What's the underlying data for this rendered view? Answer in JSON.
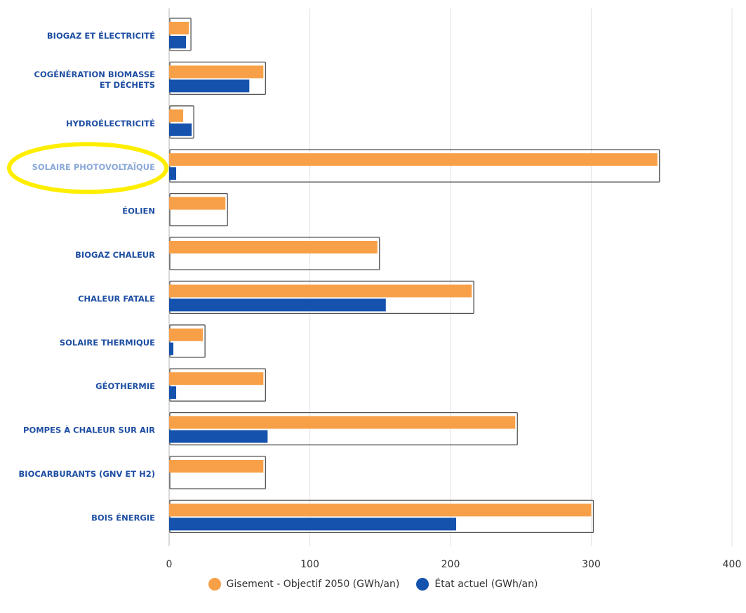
{
  "chart_data": {
    "type": "bar",
    "orientation": "horizontal",
    "categories": [
      [
        "BIOGAZ ET ÉLECTRICITÉ"
      ],
      [
        "COGÉNÉRATION BIOMASSE",
        "ET DÉCHETS"
      ],
      [
        "HYDROÉLECTRICITÉ"
      ],
      [
        "SOLAIRE PHOTOVOLTAÏQUE"
      ],
      [
        "ÉOLIEN"
      ],
      [
        "BIOGAZ CHALEUR"
      ],
      [
        "CHALEUR FATALE"
      ],
      [
        "SOLAIRE THERMIQUE"
      ],
      [
        "GÉOTHERMIE"
      ],
      [
        "POMPES À CHALEUR SUR AIR"
      ],
      [
        "BIOCARBURANTS (GNV ET H2)"
      ],
      [
        "BOIS ÉNERGIE"
      ]
    ],
    "series": [
      {
        "name": "Gisement - Objectif 2050 (GWh/an)",
        "color": "#f7a048",
        "values": [
          14,
          67,
          10,
          347,
          40,
          148,
          215,
          24,
          67,
          246,
          67,
          300
        ]
      },
      {
        "name": "État actuel (GWh/an)",
        "color": "#1452ad",
        "values": [
          12,
          57,
          16,
          5,
          0,
          0,
          154,
          3,
          5,
          70,
          0,
          204
        ]
      }
    ],
    "xticks": [
      "0",
      "100",
      "200",
      "300",
      "400"
    ],
    "xlim": [
      0,
      400
    ],
    "grid": "vertical",
    "legend_position": "bottom",
    "highlighted_category": "SOLAIRE PHOTOVOLTAÏQUE",
    "highlight_color": "#ffee00"
  }
}
